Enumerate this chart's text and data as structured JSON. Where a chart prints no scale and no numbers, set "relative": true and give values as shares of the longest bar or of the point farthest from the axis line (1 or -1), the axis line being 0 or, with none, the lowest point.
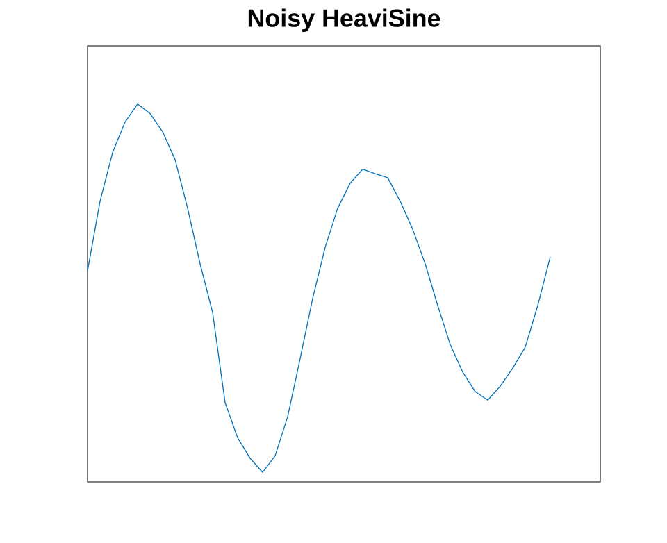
{
  "chart_data": {
    "type": "line",
    "title": "Noisy HeaviSine",
    "relative": true,
    "color": "#0072bd",
    "categories": [
      null,
      null,
      null,
      null,
      null,
      null,
      null,
      null,
      null,
      null,
      null,
      null,
      null,
      null,
      null,
      null,
      null,
      null,
      null,
      null,
      null,
      null,
      null,
      null,
      null,
      null,
      null,
      null,
      null,
      null,
      null,
      null,
      null,
      null,
      null,
      null,
      null,
      null,
      null,
      null,
      null,
      null
    ],
    "values": [
      0.547,
      0.736,
      0.868,
      0.951,
      1.0,
      0.974,
      0.925,
      0.849,
      0.717,
      0.566,
      0.434,
      0.189,
      0.094,
      0.038,
      0,
      0.045,
      0.151,
      0.309,
      0.472,
      0.611,
      0.717,
      0.785,
      0.823,
      0.811,
      0.8,
      0.736,
      0.66,
      0.566,
      0.453,
      0.347,
      0.272,
      0.219,
      0.196,
      0.234,
      0.283,
      0.34,
      0.453,
      0.585,
      null,
      null,
      null,
      null
    ]
  }
}
